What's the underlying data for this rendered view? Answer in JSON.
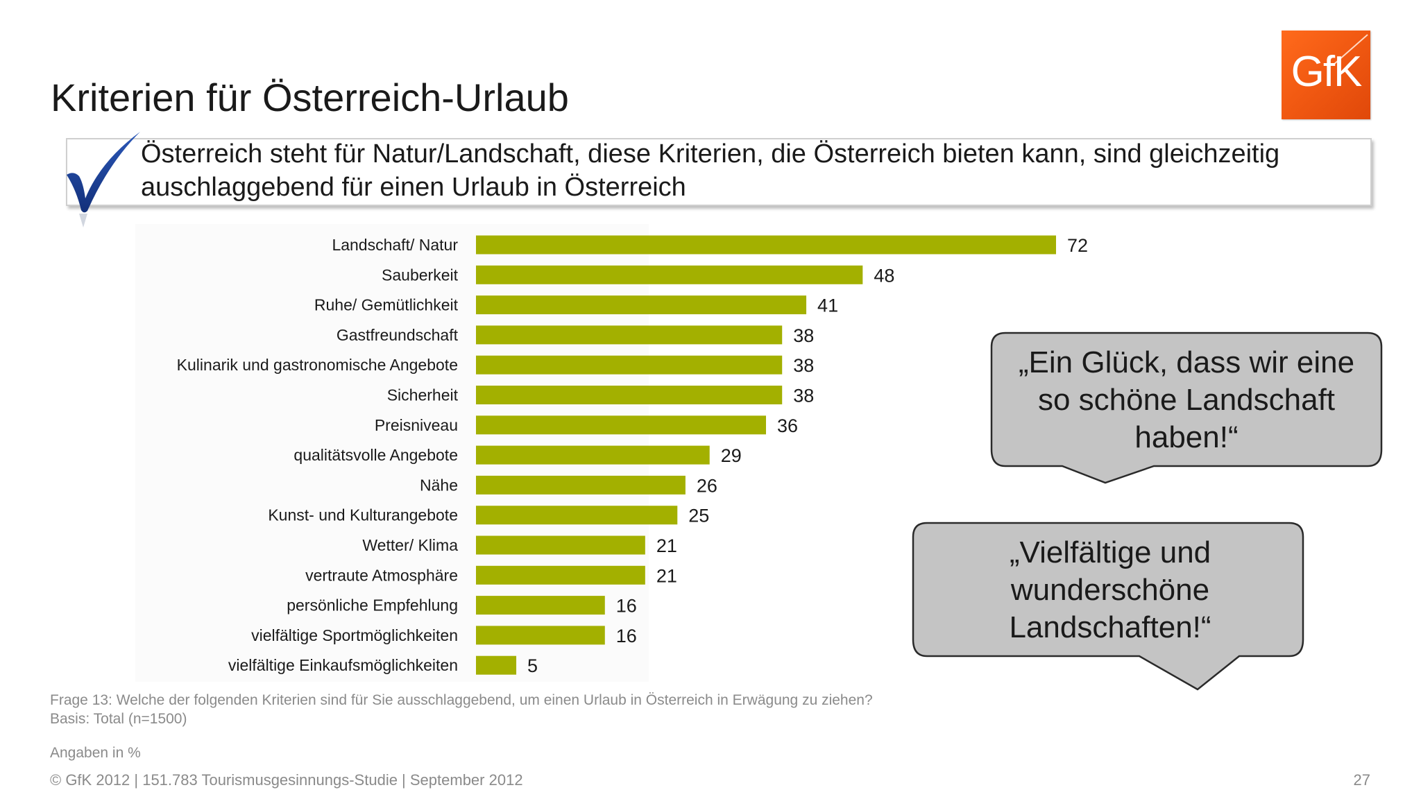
{
  "slide": {
    "title": "Kriterien für Österreich-Urlaub",
    "headline": "Österreich steht für Natur/Landschaft, diese Kriterien, die Österreich bieten kann, sind gleichzeitig auschlaggebend für einen Urlaub in Österreich",
    "logo_text": "GfK",
    "quote_1": "„Ein Glück, dass wir eine so schöne Landschaft haben!“",
    "quote_2": "„Vielfältige und wunderschöne Landschaften!“",
    "question": "Frage 13: Welche der folgenden Kriterien sind für Sie ausschlaggebend, um einen Urlaub in Österreich in Erwägung zu ziehen?",
    "basis": "Basis: Total (n=1500)",
    "unit_note": "Angaben in %",
    "footer": "© GfK 2012 | 151.783 Tourismusgesinnungs-Studie | September 2012",
    "page_number": "27"
  },
  "colors": {
    "bar": "#a3b000",
    "logo_orange": "#f25a12",
    "checkmark_blue": "#1c3f94",
    "bubble_fill": "#c4c4c4",
    "bubble_border": "#2a2a2a"
  },
  "chart_data": {
    "type": "bar",
    "orientation": "horizontal",
    "title": "",
    "xlabel": "",
    "ylabel": "",
    "categories": [
      "Landschaft/ Natur",
      "Sauberkeit",
      "Ruhe/ Gemütlichkeit",
      "Gastfreundschaft",
      "Kulinarik und gastronomische Angebote",
      "Sicherheit",
      "Preisniveau",
      "qualitätsvolle Angebote",
      "Nähe",
      "Kunst- und Kulturangebote",
      "Wetter/ Klima",
      "vertraute Atmosphäre",
      "persönliche Empfehlung",
      "vielfältige Sportmöglichkeiten",
      "vielfältige Einkaufsmöglichkeiten"
    ],
    "values": [
      72,
      48,
      41,
      38,
      38,
      38,
      36,
      29,
      26,
      25,
      21,
      21,
      16,
      16,
      5
    ],
    "xlim": [
      0,
      72
    ],
    "grid": false,
    "legend": "none",
    "data_labels": true
  }
}
